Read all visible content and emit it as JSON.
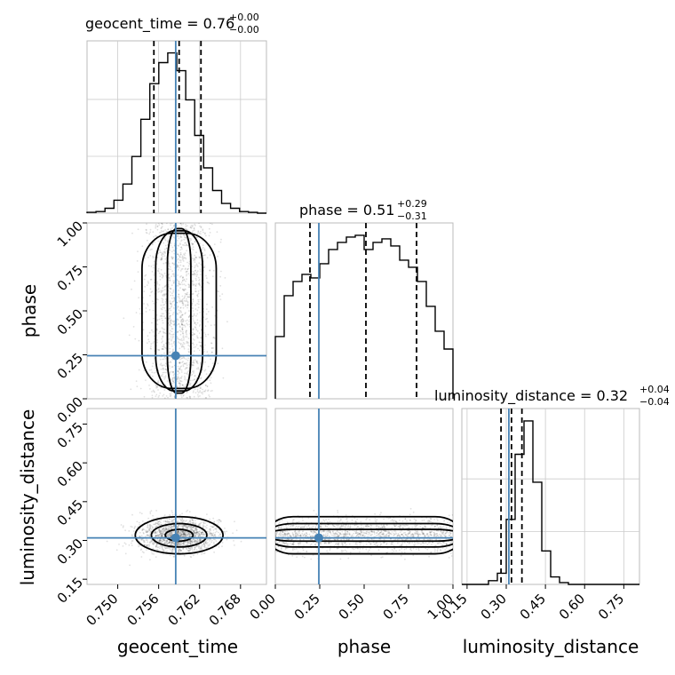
{
  "chart_data": {
    "type": "corner",
    "parameters": [
      "geocent_time",
      "phase",
      "luminosity_distance"
    ],
    "truths": {
      "geocent_time": 0.7585,
      "phase": 0.245,
      "luminosity_distance": 0.31
    },
    "ranges": {
      "geocent_time": [
        0.7455,
        0.7718
      ],
      "phase": [
        0.0,
        1.0
      ],
      "luminosity_distance": [
        0.13,
        0.81
      ]
    },
    "ticks": {
      "geocent_time": [
        "0.750",
        "0.756",
        "0.762",
        "0.768"
      ],
      "phase": [
        "0.00",
        "0.25",
        "0.50",
        "0.75",
        "1.00"
      ],
      "luminosity_distance": [
        "0.15",
        "0.30",
        "0.45",
        "0.60",
        "0.75"
      ]
    },
    "tick_values": {
      "geocent_time": [
        0.75,
        0.756,
        0.762,
        0.768
      ],
      "phase": [
        0.0,
        0.25,
        0.5,
        0.75,
        1.0
      ],
      "luminosity_distance": [
        0.15,
        0.3,
        0.45,
        0.6,
        0.75
      ]
    },
    "titles": {
      "geocent_time": {
        "name": "geocent_time",
        "median": "0.76",
        "plus": "+0.00",
        "minus": "−0.00"
      },
      "phase": {
        "name": "phase",
        "median": "0.51",
        "plus": "+0.29",
        "minus": "−0.31"
      },
      "luminosity_distance": {
        "name": "luminosity_distance",
        "median": "0.32",
        "plus": "+0.04",
        "minus": "−0.04"
      }
    },
    "quantiles": {
      "geocent_time": [
        0.7553,
        0.759,
        0.7622
      ],
      "phase": [
        0.195,
        0.51,
        0.795
      ],
      "luminosity_distance": [
        0.28,
        0.32,
        0.36
      ]
    },
    "histograms": {
      "geocent_time": [
        0.5,
        1,
        3,
        8,
        18,
        35,
        58,
        80,
        93,
        99,
        88,
        70,
        48,
        28,
        14,
        6,
        3,
        1,
        0.5,
        0
      ],
      "phase": [
        35,
        58,
        66,
        70,
        68,
        76,
        84,
        88,
        91,
        92,
        84,
        88,
        90,
        86,
        78,
        74,
        66,
        52,
        38,
        28
      ],
      "luminosity_distance": [
        0,
        0,
        0,
        2,
        6,
        35,
        70,
        88,
        55,
        18,
        4,
        1,
        0,
        0,
        0,
        0,
        0,
        0,
        0,
        0
      ]
    },
    "grid": true,
    "color": "#4682b4"
  }
}
